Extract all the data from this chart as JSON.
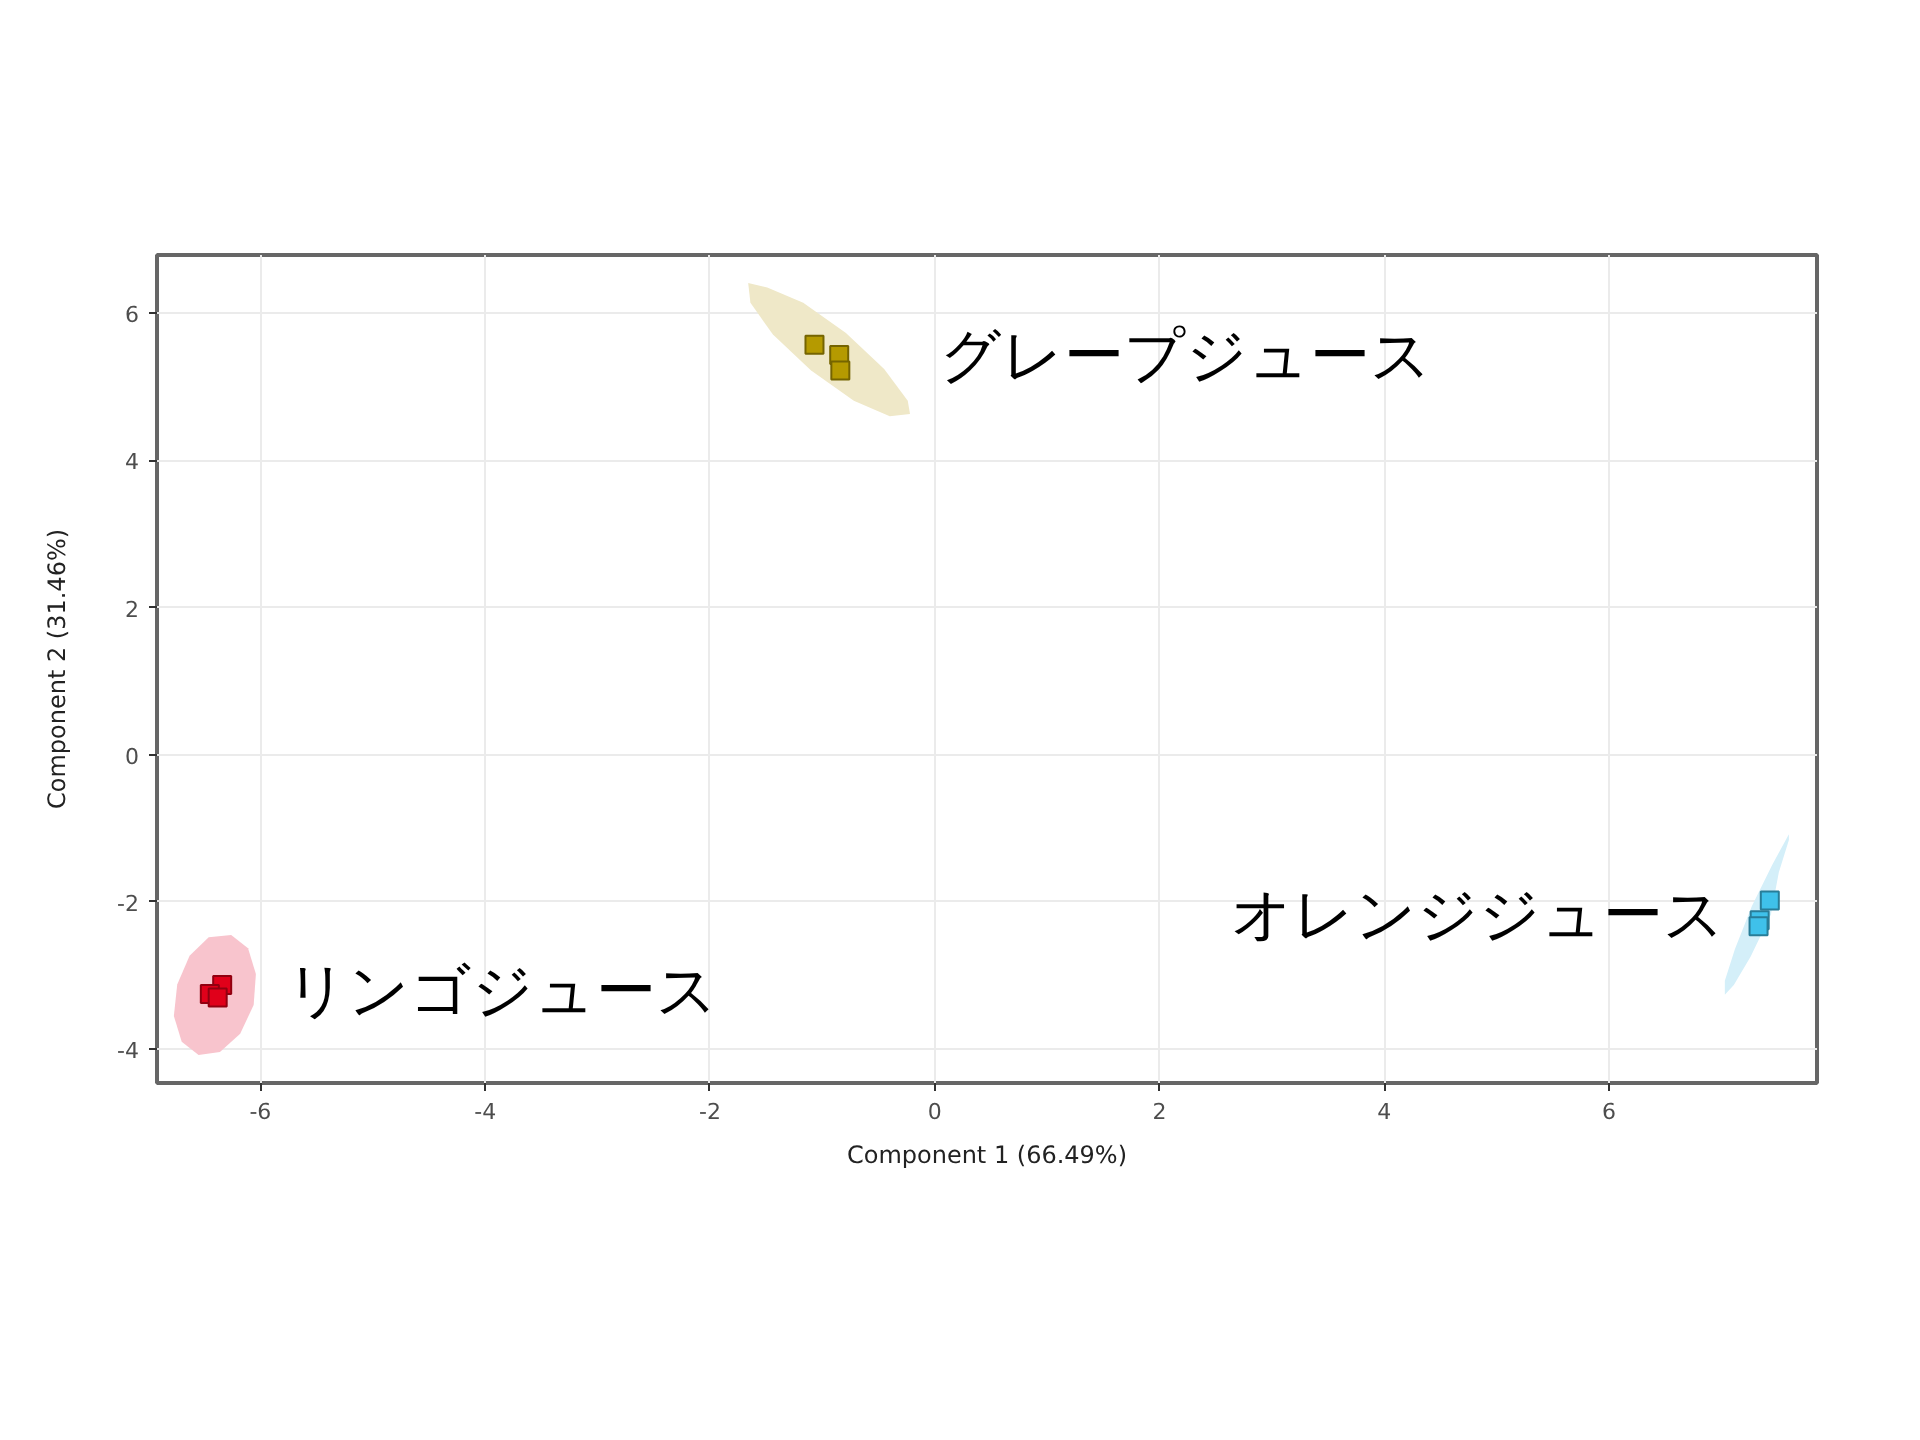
{
  "chart_data": {
    "type": "scatter",
    "xlabel": "Component 1 (66.49%)",
    "ylabel": "Component 2 (31.46%)",
    "xlim": [
      -6.92,
      7.85
    ],
    "ylim": [
      -4.46,
      6.79
    ],
    "xticks": [
      -6,
      -4,
      -2,
      0,
      2,
      4,
      6
    ],
    "yticks": [
      -4,
      -2,
      0,
      2,
      4,
      6
    ],
    "grid": true,
    "marker": "square",
    "series": [
      {
        "type": "area",
        "marker": "none",
        "color": "#f8c4cd",
        "x": [
          -6.26,
          -6.11,
          -6.04,
          -6.06,
          -6.18,
          -6.36,
          -6.55,
          -6.7,
          -6.77,
          -6.74,
          -6.63,
          -6.46
        ],
        "values": [
          -2.45,
          -2.63,
          -2.98,
          -3.4,
          -3.79,
          -4.04,
          -4.08,
          -3.9,
          -3.55,
          -3.12,
          -2.73,
          -2.48
        ]
      },
      {
        "type": "area",
        "marker": "none",
        "color": "#efe8c8",
        "x": [
          -0.22,
          -0.4,
          -0.72,
          -1.1,
          -1.44,
          -1.64,
          -1.66,
          -1.49,
          -1.17,
          -0.79,
          -0.45,
          -0.24
        ],
        "values": [
          4.63,
          4.6,
          4.81,
          5.22,
          5.71,
          6.14,
          6.41,
          6.35,
          6.14,
          5.73,
          5.24,
          4.81
        ]
      },
      {
        "type": "area",
        "marker": "none",
        "color": "#d4eff9",
        "x": [
          7.6,
          7.6,
          7.51,
          7.44,
          7.26,
          7.11,
          7.03,
          7.03,
          7.12,
          7.27,
          7.45,
          7.6
        ],
        "values": [
          -0.98,
          -1.16,
          -1.6,
          -2.17,
          -2.74,
          -3.13,
          -3.26,
          -3.07,
          -2.64,
          -2.06,
          -1.5,
          -1.08
        ]
      },
      {
        "name": "リンゴジュース",
        "color": "#e0001a",
        "x": [
          -6.34,
          -6.45,
          -6.38
        ],
        "values": [
          -3.13,
          -3.25,
          -3.3
        ]
      },
      {
        "name": "グレープジュース",
        "color": "#b59a00",
        "x": [
          -1.07,
          -0.85,
          -0.84
        ],
        "values": [
          5.57,
          5.43,
          5.22
        ]
      },
      {
        "name": "オレンジジュース",
        "color": "#3fc1ea",
        "x": [
          7.43,
          7.34,
          7.33
        ],
        "values": [
          -1.98,
          -2.25,
          -2.33
        ]
      }
    ]
  }
}
